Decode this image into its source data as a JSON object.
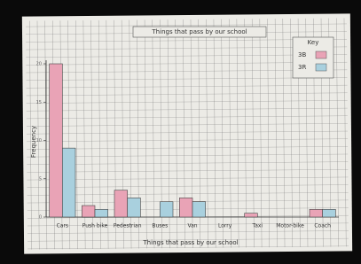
{
  "chart_data": {
    "type": "bar",
    "title": "Things that pass by our school",
    "x_label": "Things that pass by our school",
    "y_label": "Frequency",
    "legend_title": "Key",
    "categories": [
      "Cars",
      "Push bike",
      "Pedestrian",
      "Buses",
      "Van",
      "Lorry",
      "Taxi",
      "Motor-bike",
      "Coach"
    ],
    "series": [
      {
        "name": "3B",
        "color": "#e9a3b6",
        "values": [
          20,
          1.5,
          3.5,
          0,
          2.5,
          0,
          0.5,
          0,
          1
        ]
      },
      {
        "name": "3R",
        "color": "#a9d0de",
        "values": [
          9,
          1,
          2.5,
          2,
          2,
          0,
          0,
          0,
          1
        ]
      }
    ],
    "ylim": [
      0,
      20
    ],
    "yticks": [
      0,
      5,
      10,
      15,
      20
    ]
  }
}
